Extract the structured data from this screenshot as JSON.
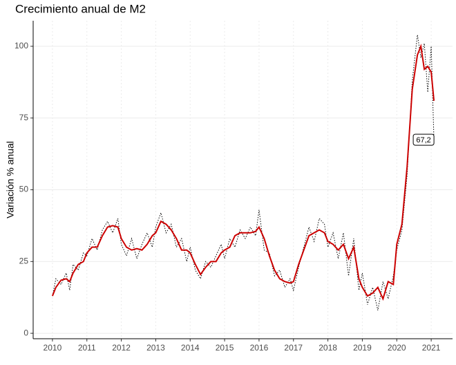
{
  "chart_data": {
    "type": "line",
    "title": "Crecimiento anual de M2",
    "y_label": "Variación % anual",
    "xlim": [
      2009.44,
      2021.62
    ],
    "xticks": [
      2010,
      2011,
      2012,
      2013,
      2014,
      2015,
      2016,
      2017,
      2018,
      2019,
      2020,
      2021
    ],
    "ylim": [
      -1.9,
      108.9
    ],
    "yticks": [
      0,
      25,
      50,
      75,
      100
    ],
    "grid": true,
    "series": [
      {
        "color": "#000000",
        "style": "dotted",
        "x": [
          2010,
          2010.1,
          2010.25,
          2010.4,
          2010.5,
          2010.6,
          2010.75,
          2010.9,
          2011,
          2011.15,
          2011.3,
          2011.45,
          2011.6,
          2011.75,
          2011.9,
          2012,
          2012.15,
          2012.3,
          2012.45,
          2012.6,
          2012.75,
          2012.9,
          2013,
          2013.15,
          2013.3,
          2013.45,
          2013.6,
          2013.75,
          2013.9,
          2014,
          2014.15,
          2014.3,
          2014.45,
          2014.6,
          2014.75,
          2014.9,
          2015,
          2015.15,
          2015.3,
          2015.45,
          2015.6,
          2015.75,
          2015.9,
          2016,
          2016.15,
          2016.3,
          2016.45,
          2016.6,
          2016.75,
          2016.9,
          2017,
          2017.15,
          2017.3,
          2017.45,
          2017.6,
          2017.75,
          2017.9,
          2018,
          2018.15,
          2018.3,
          2018.45,
          2018.6,
          2018.75,
          2018.9,
          2019,
          2019.15,
          2019.3,
          2019.45,
          2019.6,
          2019.75,
          2019.9,
          2020,
          2020.15,
          2020.3,
          2020.45,
          2020.6,
          2020.7,
          2020.8,
          2020.9,
          2021,
          2021.08
        ],
        "values": [
          13,
          19,
          17,
          21,
          15,
          24,
          22,
          28,
          27,
          33,
          29,
          36,
          39,
          35,
          40,
          31,
          27,
          33,
          26,
          31,
          35,
          30,
          37,
          42,
          35,
          38,
          30,
          33,
          25,
          30,
          22,
          19,
          25,
          23,
          27,
          31,
          26,
          33,
          30,
          36,
          33,
          37,
          34,
          43,
          29,
          28,
          20,
          22,
          16,
          19,
          15,
          23,
          30,
          37,
          32,
          40,
          38,
          30,
          35,
          26,
          35,
          20,
          33,
          15,
          21,
          10,
          16,
          8,
          18,
          12,
          20,
          29,
          36,
          55,
          88,
          104,
          96,
          101,
          84,
          100,
          67.2
        ]
      },
      {
        "color": "#cc0000",
        "style": "solid",
        "x": [
          2010,
          2010.1,
          2010.25,
          2010.4,
          2010.5,
          2010.6,
          2010.75,
          2010.9,
          2011,
          2011.15,
          2011.3,
          2011.45,
          2011.6,
          2011.75,
          2011.9,
          2012,
          2012.15,
          2012.3,
          2012.45,
          2012.6,
          2012.75,
          2012.9,
          2013,
          2013.15,
          2013.3,
          2013.45,
          2013.6,
          2013.75,
          2013.9,
          2014,
          2014.15,
          2014.3,
          2014.45,
          2014.6,
          2014.75,
          2014.9,
          2015,
          2015.15,
          2015.3,
          2015.45,
          2015.6,
          2015.75,
          2015.9,
          2016,
          2016.15,
          2016.3,
          2016.45,
          2016.6,
          2016.75,
          2016.9,
          2017,
          2017.15,
          2017.3,
          2017.45,
          2017.6,
          2017.75,
          2017.9,
          2018,
          2018.15,
          2018.3,
          2018.45,
          2018.6,
          2018.75,
          2018.9,
          2019,
          2019.15,
          2019.3,
          2019.45,
          2019.6,
          2019.75,
          2019.9,
          2020,
          2020.15,
          2020.3,
          2020.45,
          2020.6,
          2020.7,
          2020.8,
          2020.9,
          2021,
          2021.08
        ],
        "values": [
          13,
          16,
          18.5,
          19,
          18,
          21,
          24,
          25,
          28,
          30,
          30,
          34,
          37,
          37.5,
          37,
          33,
          30,
          29,
          29.5,
          29,
          31,
          34,
          35,
          39,
          38,
          36,
          33,
          29,
          29,
          28,
          24,
          20.5,
          23,
          25,
          25,
          28,
          29,
          30,
          34,
          35,
          35,
          35,
          35.5,
          37,
          33,
          27,
          22,
          19,
          18,
          17.5,
          18,
          24,
          29,
          34,
          35,
          36,
          35,
          32,
          31,
          29,
          31,
          26,
          30,
          19,
          16,
          13,
          14,
          16,
          12,
          18,
          17,
          31,
          38,
          58,
          85,
          97,
          100,
          92,
          93,
          91,
          81
        ]
      }
    ],
    "annotation": {
      "x": 2021,
      "value": 67.2,
      "label": "67,2"
    }
  }
}
